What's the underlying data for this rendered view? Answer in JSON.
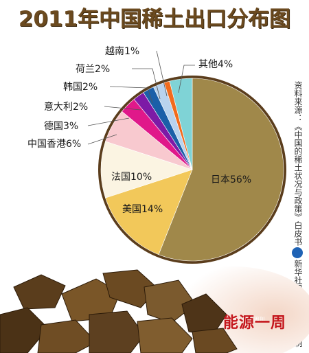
{
  "title": "2011年中国稀土出口分布图",
  "chart_data": {
    "type": "pie",
    "title": "2011年中国稀土出口分布图",
    "slices": [
      {
        "label": "日本",
        "value": 56,
        "text": "日本56%",
        "color": "#a0884a"
      },
      {
        "label": "美国",
        "value": 14,
        "text": "美国14%",
        "color": "#f2c85a"
      },
      {
        "label": "法国",
        "value": 10,
        "text": "法国10%",
        "color": "#fbf4e2"
      },
      {
        "label": "中国香港",
        "value": 6,
        "text": "中国香港6%",
        "color": "#f8c9cf"
      },
      {
        "label": "德国",
        "value": 3,
        "text": "德国3%",
        "color": "#e0188a"
      },
      {
        "label": "意大利",
        "value": 2,
        "text": "意大利2%",
        "color": "#7d1aa6"
      },
      {
        "label": "韩国",
        "value": 2,
        "text": "韩国2%",
        "color": "#1b5fa8"
      },
      {
        "label": "荷兰",
        "value": 2,
        "text": "荷兰2%",
        "color": "#b9d3ee"
      },
      {
        "label": "越南",
        "value": 1,
        "text": "越南1%",
        "color": "#f26b1d"
      },
      {
        "label": "其他",
        "value": 4,
        "text": "其他4%",
        "color": "#7fd3d6"
      }
    ]
  },
  "source_text": "资料来源：《中国的稀土状况与政策》白皮书",
  "credit_text": "新华社记者 曲振东 编制",
  "brand_text": "能源一周",
  "brand_small": "新华社 能源周刊"
}
